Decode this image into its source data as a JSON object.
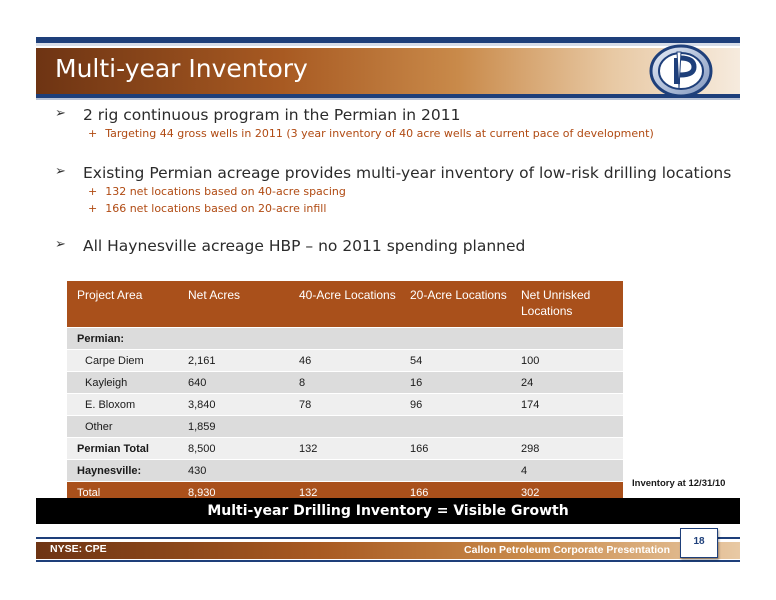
{
  "slide": {
    "title": "Multi-year Inventory",
    "bullets": [
      {
        "text": "2 rig continuous program in the Permian in 2011",
        "subs": [
          "Targeting 44 gross wells in 2011 (3 year inventory of 40 acre wells at current pace of development)"
        ]
      },
      {
        "text": "Existing Permian acreage provides multi-year inventory of low-risk drilling locations",
        "subs": [
          "132 net locations based on 40-acre spacing",
          "166 net locations based on 20-acre infill"
        ]
      },
      {
        "text": "All Haynesville acreage HBP – no 2011 spending planned",
        "subs": []
      }
    ],
    "arrow_glyph": "➢",
    "plus_glyph": "+"
  },
  "table": {
    "headers": [
      "Project Area",
      "Net  Acres",
      "40-Acre Locations",
      "20-Acre Locations",
      "Net Unrisked Locations"
    ],
    "rows": [
      {
        "cells": [
          "Permian:",
          "",
          "",
          "",
          ""
        ]
      },
      {
        "cells": [
          "Carpe Diem",
          "2,161",
          "46",
          "54",
          "100"
        ]
      },
      {
        "cells": [
          "Kayleigh",
          "640",
          "8",
          "16",
          "24"
        ]
      },
      {
        "cells": [
          "E. Bloxom",
          "3,840",
          "78",
          "96",
          "174"
        ]
      },
      {
        "cells": [
          "Other",
          "1,859",
          "",
          "",
          ""
        ]
      },
      {
        "cells": [
          "Permian Total",
          "8,500",
          "132",
          "166",
          "298"
        ]
      },
      {
        "cells": [
          "Haynesville:",
          "430",
          "",
          "",
          "4"
        ]
      },
      {
        "cells": [
          "Total",
          "8,930",
          "132",
          "166",
          "302"
        ]
      }
    ],
    "note": "Inventory at 12/31/10"
  },
  "banner": "Multi-year Drilling Inventory = Visible Growth",
  "footer": {
    "left": "NYSE: CPE",
    "right": "Callon Petroleum Corporate Presentation",
    "page": "18"
  },
  "colors": {
    "brand_brown": "#a9501b",
    "brand_navy": "#1e3f7a"
  }
}
